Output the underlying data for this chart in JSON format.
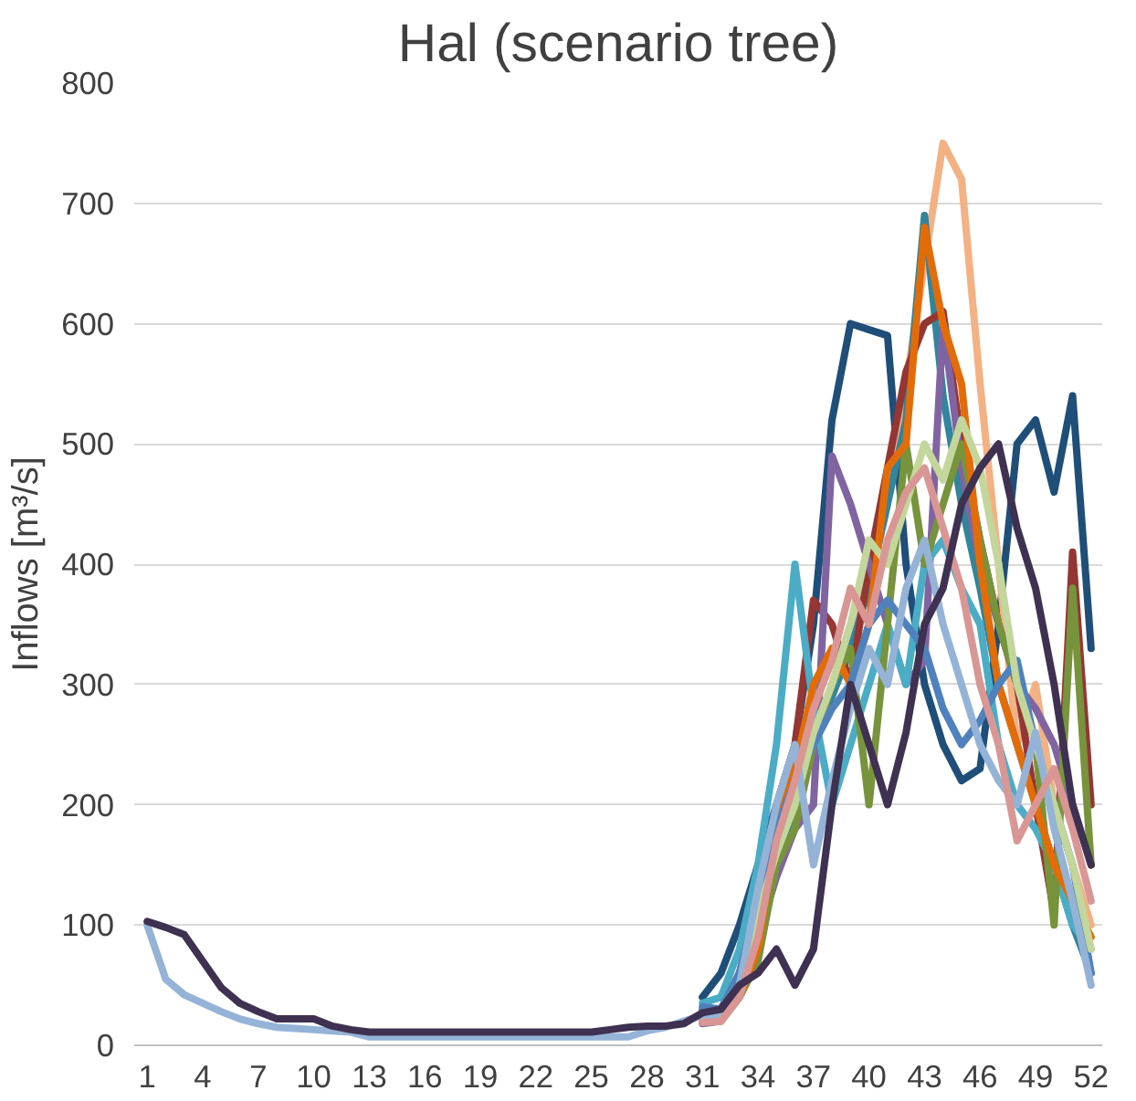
{
  "chart_data": {
    "type": "line",
    "title": "Hal (scenario tree)",
    "ylabel": "Inflows [m³/s]",
    "x": [
      1,
      2,
      3,
      4,
      5,
      6,
      7,
      8,
      9,
      10,
      11,
      12,
      13,
      14,
      15,
      16,
      17,
      18,
      19,
      20,
      21,
      22,
      23,
      24,
      25,
      26,
      27,
      28,
      29,
      30,
      31,
      32,
      33,
      34,
      35,
      36,
      37,
      38,
      39,
      40,
      41,
      42,
      43,
      44,
      45,
      46,
      47,
      48,
      49,
      50,
      51,
      52
    ],
    "xlim": [
      0.3,
      52.6
    ],
    "xticks": [
      1,
      4,
      7,
      10,
      13,
      16,
      19,
      22,
      25,
      28,
      31,
      34,
      37,
      40,
      43,
      46,
      49,
      52
    ],
    "ylim": [
      0,
      800
    ],
    "yticks": [
      0,
      100,
      200,
      300,
      400,
      500,
      600,
      700,
      800
    ],
    "grid": "y",
    "line_style": "solid",
    "marker": "none",
    "series": [
      {
        "color": "#1f4e79",
        "values": [
          null,
          null,
          null,
          null,
          null,
          null,
          null,
          null,
          null,
          null,
          null,
          null,
          null,
          null,
          null,
          null,
          null,
          null,
          null,
          null,
          null,
          null,
          null,
          null,
          null,
          null,
          null,
          null,
          null,
          null,
          40,
          60,
          100,
          150,
          200,
          250,
          350,
          520,
          600,
          595,
          590,
          400,
          300,
          250,
          220,
          230,
          350,
          500,
          520,
          460,
          540,
          330
        ]
      },
      {
        "color": "#f4b183",
        "values": [
          null,
          null,
          null,
          null,
          null,
          null,
          null,
          null,
          null,
          null,
          null,
          null,
          null,
          null,
          null,
          null,
          null,
          null,
          null,
          null,
          null,
          null,
          null,
          null,
          null,
          null,
          null,
          null,
          null,
          null,
          22,
          20,
          40,
          100,
          180,
          200,
          260,
          300,
          350,
          400,
          450,
          550,
          650,
          750,
          720,
          550,
          400,
          250,
          300,
          200,
          150,
          100
        ]
      },
      {
        "color": "#31859c",
        "values": [
          null,
          null,
          null,
          null,
          null,
          null,
          null,
          null,
          null,
          null,
          null,
          null,
          null,
          null,
          null,
          null,
          null,
          null,
          null,
          null,
          null,
          null,
          null,
          null,
          null,
          null,
          null,
          null,
          null,
          null,
          30,
          30,
          60,
          120,
          150,
          200,
          260,
          290,
          330,
          380,
          450,
          520,
          690,
          540,
          450,
          380,
          300,
          250,
          200,
          150,
          100,
          60
        ]
      },
      {
        "color": "#943634",
        "values": [
          null,
          null,
          null,
          null,
          null,
          null,
          null,
          null,
          null,
          null,
          null,
          null,
          null,
          null,
          null,
          null,
          null,
          null,
          null,
          null,
          null,
          null,
          null,
          null,
          null,
          null,
          null,
          null,
          null,
          null,
          28,
          30,
          60,
          100,
          180,
          250,
          370,
          350,
          300,
          400,
          480,
          560,
          600,
          610,
          500,
          420,
          350,
          300,
          200,
          110,
          410,
          200
        ]
      },
      {
        "color": "#8064a2",
        "values": [
          null,
          null,
          null,
          null,
          null,
          null,
          null,
          null,
          null,
          null,
          null,
          null,
          null,
          null,
          null,
          null,
          null,
          null,
          null,
          null,
          null,
          null,
          null,
          null,
          null,
          null,
          null,
          null,
          null,
          null,
          18,
          20,
          50,
          90,
          140,
          180,
          200,
          490,
          450,
          400,
          350,
          300,
          320,
          600,
          480,
          400,
          350,
          300,
          280,
          250,
          200,
          150
        ]
      },
      {
        "color": "#4bacc6",
        "values": [
          null,
          null,
          null,
          null,
          null,
          null,
          null,
          null,
          null,
          null,
          null,
          null,
          null,
          null,
          null,
          null,
          null,
          null,
          null,
          null,
          null,
          null,
          null,
          null,
          null,
          null,
          null,
          null,
          null,
          null,
          35,
          40,
          80,
          150,
          250,
          400,
          280,
          200,
          250,
          300,
          350,
          300,
          400,
          420,
          380,
          350,
          250,
          200,
          180,
          150,
          100,
          80
        ]
      },
      {
        "color": "#77933c",
        "values": [
          null,
          null,
          null,
          null,
          null,
          null,
          null,
          null,
          null,
          null,
          null,
          null,
          null,
          null,
          null,
          null,
          null,
          null,
          null,
          null,
          null,
          null,
          null,
          null,
          null,
          null,
          null,
          null,
          null,
          null,
          26,
          30,
          40,
          70,
          150,
          180,
          250,
          300,
          330,
          200,
          350,
          500,
          400,
          450,
          500,
          420,
          350,
          300,
          250,
          100,
          380,
          150
        ]
      },
      {
        "color": "#e36c09",
        "values": [
          null,
          null,
          null,
          null,
          null,
          null,
          null,
          null,
          null,
          null,
          null,
          null,
          null,
          null,
          null,
          null,
          null,
          null,
          null,
          null,
          null,
          null,
          null,
          null,
          null,
          null,
          null,
          null,
          null,
          null,
          20,
          20,
          40,
          80,
          180,
          230,
          300,
          330,
          300,
          350,
          480,
          500,
          680,
          600,
          550,
          400,
          300,
          250,
          200,
          150,
          120,
          90
        ]
      },
      {
        "color": "#4f81bd",
        "values": [
          null,
          null,
          null,
          null,
          null,
          null,
          null,
          null,
          null,
          null,
          null,
          null,
          null,
          null,
          null,
          null,
          null,
          null,
          null,
          null,
          null,
          null,
          null,
          null,
          null,
          null,
          null,
          null,
          null,
          null,
          32,
          30,
          60,
          120,
          180,
          220,
          250,
          280,
          300,
          350,
          370,
          350,
          330,
          280,
          250,
          270,
          300,
          320,
          250,
          200,
          150,
          60
        ]
      },
      {
        "color": "#c3d69b",
        "values": [
          null,
          null,
          null,
          null,
          null,
          null,
          null,
          null,
          null,
          null,
          null,
          null,
          null,
          null,
          null,
          null,
          null,
          null,
          null,
          null,
          null,
          null,
          null,
          null,
          null,
          null,
          null,
          null,
          null,
          null,
          24,
          20,
          50,
          110,
          160,
          200,
          260,
          300,
          350,
          420,
          400,
          450,
          500,
          470,
          520,
          480,
          400,
          300,
          250,
          200,
          150,
          80
        ]
      },
      {
        "color": "#95b3d7",
        "values": [
          100,
          55,
          42,
          35,
          28,
          22,
          18,
          15,
          14,
          13,
          12,
          11,
          7,
          7,
          7,
          7,
          7,
          7,
          7,
          7,
          7,
          7,
          7,
          7,
          7,
          7,
          7,
          12,
          15,
          20,
          25,
          25,
          50,
          130,
          200,
          250,
          150,
          220,
          280,
          330,
          300,
          380,
          420,
          350,
          300,
          250,
          220,
          200,
          260,
          180,
          120,
          50
        ]
      },
      {
        "color": "#d99694",
        "values": [
          null,
          null,
          null,
          null,
          null,
          null,
          null,
          null,
          null,
          null,
          null,
          null,
          null,
          null,
          null,
          null,
          null,
          null,
          null,
          null,
          null,
          null,
          null,
          null,
          null,
          null,
          null,
          null,
          null,
          null,
          19,
          20,
          40,
          90,
          170,
          220,
          280,
          320,
          380,
          350,
          420,
          460,
          480,
          430,
          380,
          300,
          250,
          170,
          200,
          230,
          180,
          120
        ]
      },
      {
        "color": "#3f3151",
        "values": [
          103,
          98,
          92,
          70,
          48,
          35,
          28,
          22,
          22,
          22,
          16,
          13,
          11,
          11,
          11,
          11,
          11,
          11,
          11,
          11,
          11,
          11,
          11,
          11,
          11,
          13,
          15,
          16,
          16,
          18,
          27,
          30,
          50,
          60,
          80,
          50,
          80,
          200,
          300,
          250,
          200,
          260,
          350,
          380,
          450,
          480,
          500,
          430,
          380,
          300,
          200,
          150
        ]
      }
    ]
  }
}
